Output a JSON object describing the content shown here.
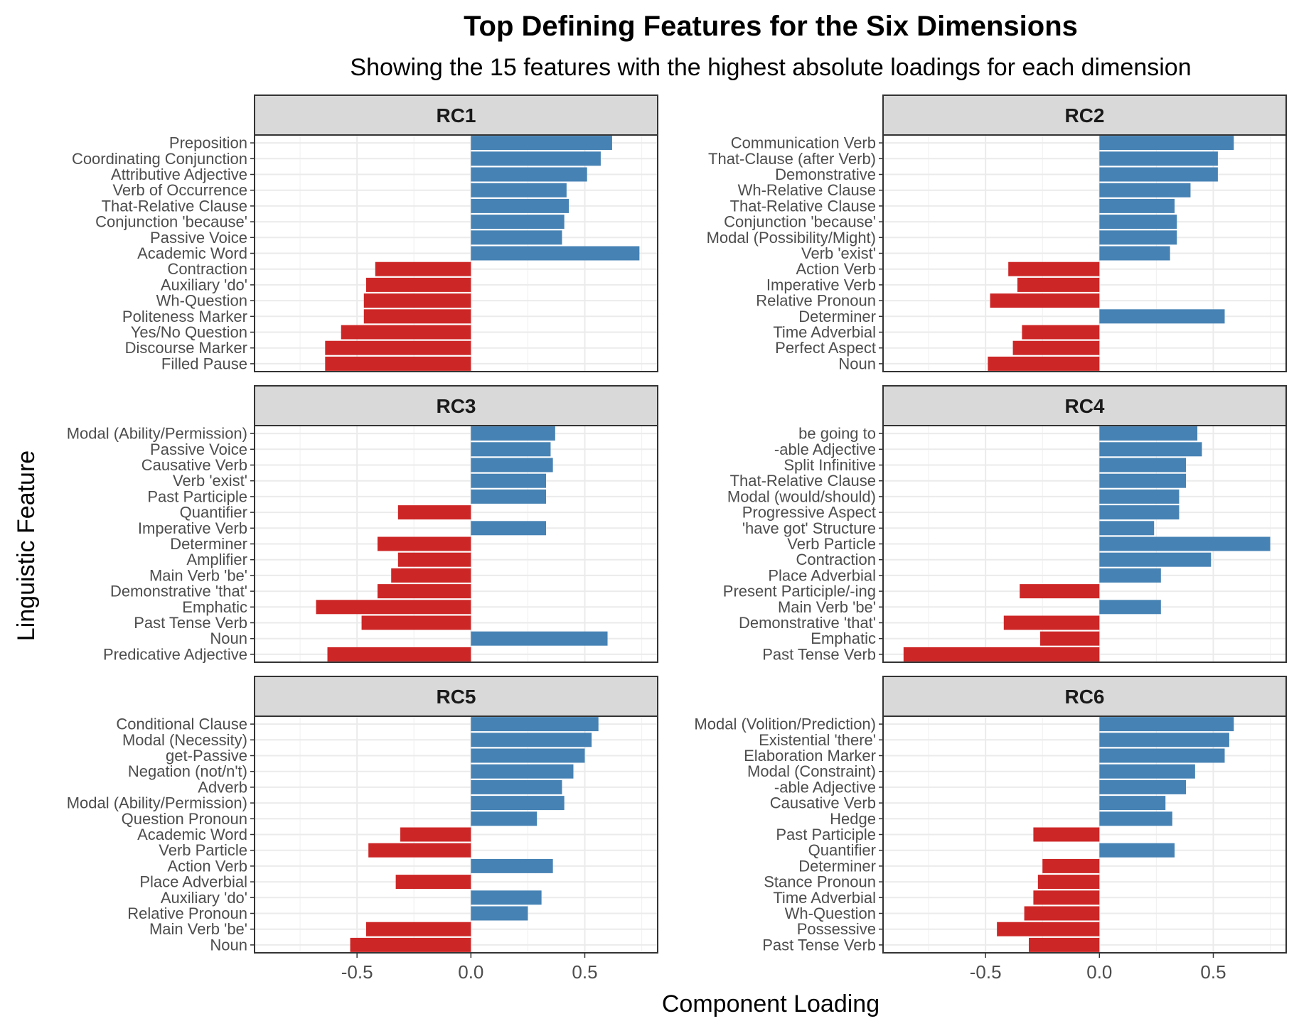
{
  "chart_data": {
    "type": "bar",
    "orientation": "horizontal",
    "title": "Top Defining Features for the Six Dimensions",
    "subtitle": "Showing the 15 features with the highest absolute loadings for each dimension",
    "xlabel": "Component Loading",
    "ylabel": "Linguistic Feature",
    "xlim": [
      -0.95,
      0.82
    ],
    "xticks": [
      -0.5,
      0.0,
      0.5
    ],
    "xtick_labels": [
      "-0.5",
      "0.0",
      "0.5"
    ],
    "grid": true,
    "colors": {
      "positive": "#4682B4",
      "negative": "#CD2626"
    },
    "panels": [
      {
        "name": "RC1",
        "categories": [
          "Preposition",
          "Coordinating Conjunction",
          "Attributive Adjective",
          "Verb of Occurrence",
          "That-Relative Clause",
          "Conjunction 'because'",
          "Passive Voice",
          "Academic Word",
          "Contraction",
          "Auxiliary 'do'",
          "Wh-Question",
          "Politeness Marker",
          "Yes/No Question",
          "Discourse Marker",
          "Filled Pause"
        ],
        "values": [
          0.62,
          0.57,
          0.51,
          0.42,
          0.43,
          0.41,
          0.4,
          0.74,
          -0.42,
          -0.46,
          -0.47,
          -0.47,
          -0.57,
          -0.64,
          -0.64
        ]
      },
      {
        "name": "RC2",
        "categories": [
          "Communication Verb",
          "That-Clause (after Verb)",
          "Demonstrative",
          "Wh-Relative Clause",
          "That-Relative Clause",
          "Conjunction 'because'",
          "Modal (Possibility/Might)",
          "Verb 'exist'",
          "Action Verb",
          "Imperative Verb",
          "Relative Pronoun",
          "Determiner",
          "Time Adverbial",
          "Perfect Aspect",
          "Noun"
        ],
        "values": [
          0.59,
          0.52,
          0.52,
          0.4,
          0.33,
          0.34,
          0.34,
          0.31,
          -0.4,
          -0.36,
          -0.48,
          0.55,
          -0.34,
          -0.38,
          -0.49
        ]
      },
      {
        "name": "RC3",
        "categories": [
          "Modal (Ability/Permission)",
          "Passive Voice",
          "Causative Verb",
          "Verb 'exist'",
          "Past Participle",
          "Quantifier",
          "Imperative Verb",
          "Determiner",
          "Amplifier",
          "Main Verb 'be'",
          "Demonstrative 'that'",
          "Emphatic",
          "Past Tense Verb",
          "Noun",
          "Predicative Adjective"
        ],
        "values": [
          0.37,
          0.35,
          0.36,
          0.33,
          0.33,
          -0.32,
          0.33,
          -0.41,
          -0.32,
          -0.35,
          -0.41,
          -0.68,
          -0.48,
          0.6,
          -0.63
        ]
      },
      {
        "name": "RC4",
        "categories": [
          "be going to",
          "-able Adjective",
          "Split Infinitive",
          "That-Relative Clause",
          "Modal (would/should)",
          "Progressive Aspect",
          "'have got' Structure",
          "Verb Particle",
          "Contraction",
          "Place Adverbial",
          "Present Participle/-ing",
          "Main Verb 'be'",
          "Demonstrative 'that'",
          "Emphatic",
          "Past Tense Verb"
        ],
        "values": [
          0.43,
          0.45,
          0.38,
          0.38,
          0.35,
          0.35,
          0.24,
          0.75,
          0.49,
          0.27,
          -0.35,
          0.27,
          -0.42,
          -0.26,
          -0.86
        ]
      },
      {
        "name": "RC5",
        "categories": [
          "Conditional Clause",
          "Modal (Necessity)",
          "get-Passive",
          "Negation (not/n't)",
          "Adverb",
          "Modal (Ability/Permission)",
          "Question Pronoun",
          "Academic Word",
          "Verb Particle",
          "Action Verb",
          "Place Adverbial",
          "Auxiliary 'do'",
          "Relative Pronoun",
          "Main Verb 'be'",
          "Noun"
        ],
        "values": [
          0.56,
          0.53,
          0.5,
          0.45,
          0.4,
          0.41,
          0.29,
          -0.31,
          -0.45,
          0.36,
          -0.33,
          0.31,
          0.25,
          -0.46,
          -0.53
        ]
      },
      {
        "name": "RC6",
        "categories": [
          "Modal (Volition/Prediction)",
          "Existential 'there'",
          "Elaboration Marker",
          "Modal (Constraint)",
          "-able Adjective",
          "Causative Verb",
          "Hedge",
          "Past Participle",
          "Quantifier",
          "Determiner",
          "Stance Pronoun",
          "Time Adverbial",
          "Wh-Question",
          "Possessive",
          "Past Tense Verb"
        ],
        "values": [
          0.59,
          0.57,
          0.55,
          0.42,
          0.38,
          0.29,
          0.32,
          -0.29,
          0.33,
          -0.25,
          -0.27,
          -0.29,
          -0.33,
          -0.45,
          -0.31
        ]
      }
    ]
  }
}
